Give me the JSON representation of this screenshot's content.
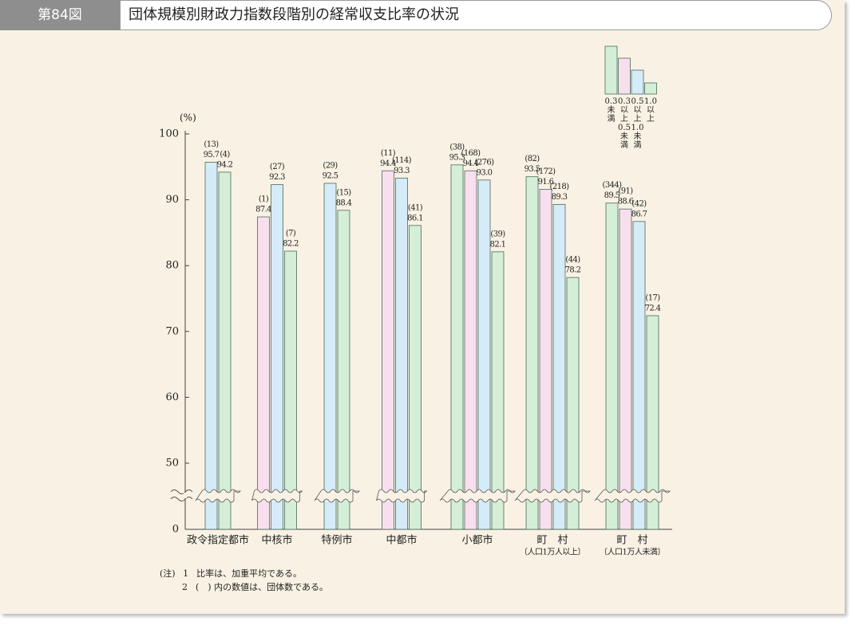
{
  "header": {
    "figure_label": "第84図",
    "title": "団体規模別財政力指数段階別の経常収支比率の状況"
  },
  "chart_data": {
    "type": "bar",
    "y_unit": "(%)",
    "categories": [
      "政令指定都市",
      "中核市",
      "特例市",
      "中都市",
      "小都市",
      "町　村",
      "町　村"
    ],
    "category_notes": [
      null,
      null,
      null,
      null,
      null,
      "〔人口1万人以上〕",
      "〔人口1万人未満〕"
    ],
    "series": [
      {
        "name": "0.3未満",
        "color": "#d4eed8",
        "values": [
          null,
          null,
          null,
          null,
          95.3,
          93.5,
          89.5
        ],
        "value_labels": [
          null,
          null,
          null,
          null,
          "95.3",
          "93.5",
          "89.5"
        ],
        "counts": [
          null,
          null,
          null,
          null,
          "(38)",
          "(82)",
          "(344)"
        ]
      },
      {
        "name": "0.3以上0.5未満",
        "color": "#f7dfee",
        "values": [
          null,
          87.4,
          null,
          94.4,
          94.4,
          91.6,
          88.6
        ],
        "value_labels": [
          null,
          "87.4",
          null,
          "94.4",
          "94.4",
          "91.6",
          "88.6"
        ],
        "counts": [
          null,
          "(1)",
          null,
          "(11)",
          "(168)",
          "(172)",
          "(91)"
        ]
      },
      {
        "name": "0.5以上1.0未満",
        "color": "#d6ebf8",
        "values": [
          95.7,
          92.3,
          92.5,
          93.3,
          93.0,
          89.3,
          86.7
        ],
        "value_labels": [
          "95.7",
          "92.3",
          "92.5",
          "93.3",
          "93.0",
          "89.3",
          "86.7"
        ],
        "counts": [
          "(13)",
          "(27)",
          "(29)",
          "(114)",
          "(276)",
          "(218)",
          "(42)"
        ]
      },
      {
        "name": "1.0以上",
        "color": "#d4eed8",
        "values": [
          94.2,
          82.2,
          88.4,
          86.1,
          82.1,
          78.2,
          72.4
        ],
        "value_labels": [
          "94.2",
          "82.2",
          "88.4",
          "86.1",
          "82.1",
          "78.2",
          "72.4"
        ],
        "counts": [
          "(4)",
          "(7)",
          "(15)",
          "(41)",
          "(39)",
          "(44)",
          "(17)"
        ]
      }
    ],
    "ylim": [
      0,
      100
    ],
    "axis_break": [
      0,
      50
    ],
    "yticks": [
      0,
      50,
      60,
      70,
      80,
      90,
      100
    ]
  },
  "notes": {
    "label": "(注)",
    "items": [
      {
        "number": "1",
        "text": "比率は、加重平均である。"
      },
      {
        "number": "2",
        "text": "(　) 内の数値は、団体数である。"
      }
    ]
  }
}
